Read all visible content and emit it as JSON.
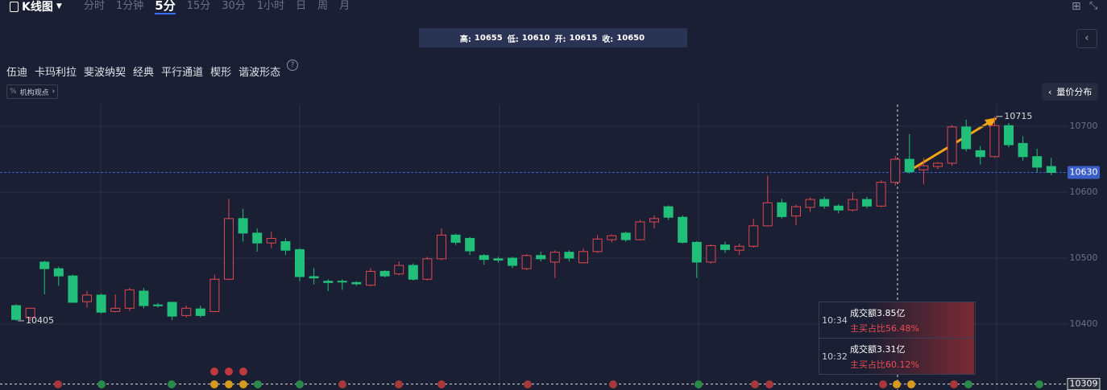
{
  "header": {
    "title": "K线图",
    "tabs": [
      "分时",
      "1分钟",
      "5分",
      "15分",
      "30分",
      "1小时",
      "日",
      "周",
      "月"
    ],
    "active_tab": 2
  },
  "tooltip": [
    {
      "label": "高:",
      "value": 10655
    },
    {
      "label": "低:",
      "value": 10610
    },
    {
      "label": "开:",
      "value": 10615
    },
    {
      "label": "收:",
      "value": 10650
    }
  ],
  "tools": [
    "伍迪",
    "卡玛利拉",
    "斐波纳契",
    "经典",
    "平行通道",
    "楔形",
    "谐波形态"
  ],
  "institution_button": "机构观点",
  "volume_profile_button": "量价分布",
  "trades": [
    {
      "time": "10:34",
      "amount": "成交额3.85亿",
      "ratio": "主买占比56.48%"
    },
    {
      "time": "10:32",
      "amount": "成交额3.31亿",
      "ratio": "主买占比60.12%"
    }
  ],
  "chart_data": {
    "type": "candlestick",
    "up_color": "#e0474f",
    "down_color": "#21c07a",
    "ylim": [
      10300,
      10733
    ],
    "yticks": [
      10400,
      10500,
      10600,
      10700
    ],
    "grid": true,
    "last_price": 10630,
    "crosshair_price": 10309,
    "high_label": 10715,
    "low_label": 10405,
    "open": [
      10428,
      10410,
      10494,
      10484,
      10473,
      10434,
      10444,
      10419,
      10424,
      10450,
      10429,
      10433,
      10413,
      10423,
      10419,
      10468,
      10560,
      10538,
      10523,
      10525,
      10513,
      10472,
      10465,
      10465,
      10463,
      10459,
      10480,
      10476,
      10489,
      10468,
      10499,
      10535,
      10530,
      10504,
      10499,
      10500,
      10484,
      10504,
      10494,
      10509,
      10493,
      10510,
      10528,
      10538,
      10528,
      10555,
      10578,
      10562,
      10524,
      10494,
      10520,
      10512,
      10518,
      10549,
      10584,
      10564,
      10577,
      10589,
      10579,
      10573,
      10589,
      10579,
      10615,
      10650,
      10634,
      10639,
      10644,
      10699,
      10663,
      10654,
      10701,
      10674,
      10654,
      10639
    ],
    "high": [
      10430,
      10425,
      10496,
      10487,
      10475,
      10450,
      10446,
      10445,
      10455,
      10455,
      10432,
      10434,
      10428,
      10428,
      10475,
      10590,
      10575,
      10545,
      10540,
      10530,
      10515,
      10485,
      10468,
      10468,
      10465,
      10485,
      10482,
      10495,
      10492,
      10502,
      10545,
      10537,
      10532,
      10506,
      10502,
      10502,
      10506,
      10510,
      10512,
      10512,
      10515,
      10535,
      10536,
      10540,
      10558,
      10565,
      10580,
      10565,
      10526,
      10521,
      10525,
      10522,
      10560,
      10625,
      10590,
      10581,
      10592,
      10593,
      10582,
      10600,
      10593,
      10618,
      10655,
      10688,
      10652,
      10646,
      10702,
      10710,
      10670,
      10715,
      10705,
      10685,
      10666,
      10652
    ],
    "low": [
      10405,
      10405,
      10445,
      10458,
      10433,
      10425,
      10416,
      10418,
      10420,
      10424,
      10425,
      10406,
      10410,
      10410,
      10419,
      10467,
      10525,
      10510,
      10515,
      10505,
      10465,
      10460,
      10450,
      10452,
      10458,
      10457,
      10471,
      10474,
      10466,
      10466,
      10497,
      10520,
      10505,
      10490,
      10493,
      10485,
      10482,
      10495,
      10470,
      10495,
      10492,
      10508,
      10524,
      10525,
      10527,
      10545,
      10558,
      10522,
      10470,
      10492,
      10508,
      10505,
      10516,
      10548,
      10560,
      10550,
      10570,
      10575,
      10568,
      10571,
      10576,
      10577,
      10610,
      10628,
      10612,
      10635,
      10640,
      10662,
      10642,
      10652,
      10668,
      10648,
      10630,
      10626
    ],
    "close": [
      10407,
      10424,
      10484,
      10473,
      10433,
      10444,
      10418,
      10424,
      10452,
      10428,
      10428,
      10412,
      10424,
      10413,
      10468,
      10560,
      10538,
      10523,
      10530,
      10512,
      10472,
      10470,
      10463,
      10464,
      10461,
      10480,
      10473,
      10489,
      10468,
      10499,
      10535,
      10524,
      10511,
      10498,
      10497,
      10489,
      10504,
      10499,
      10509,
      10500,
      10510,
      10529,
      10534,
      10528,
      10555,
      10560,
      10562,
      10524,
      10494,
      10519,
      10513,
      10518,
      10549,
      10584,
      10563,
      10578,
      10589,
      10579,
      10573,
      10589,
      10579,
      10615,
      10650,
      10631,
      10640,
      10644,
      10699,
      10666,
      10654,
      10701,
      10672,
      10654,
      10638,
      10630
    ]
  }
}
